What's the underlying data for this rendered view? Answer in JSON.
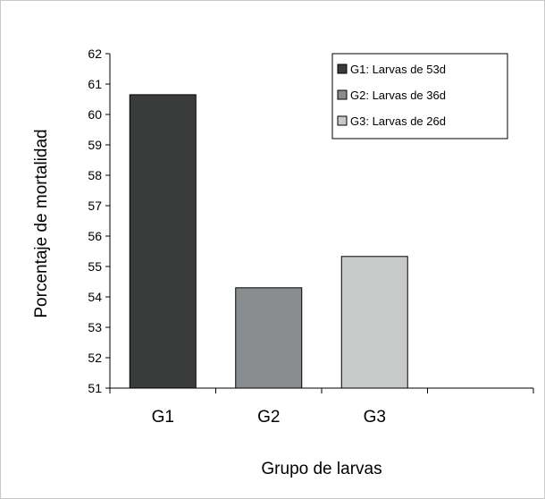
{
  "chart_data": {
    "type": "bar",
    "categories": [
      "G1",
      "G2",
      "G3",
      ""
    ],
    "series": [
      {
        "name": "G1: Larvas de 53d",
        "values": [
          60.65,
          null,
          null,
          null
        ],
        "color": "#3a3c3c"
      },
      {
        "name": "G2: Larvas de 36d",
        "values": [
          null,
          54.3,
          null,
          null
        ],
        "color": "#8a8d8f"
      },
      {
        "name": "G3: Larvas de 26d",
        "values": [
          null,
          null,
          55.33,
          null
        ],
        "color": "#c8c9c9"
      }
    ],
    "title": "",
    "xlabel": "Grupo de larvas",
    "ylabel": "Porcentaje de mortalidad",
    "ylim": [
      51,
      62
    ],
    "yticks": [
      "51",
      "52",
      "53",
      "54",
      "55",
      "56",
      "57",
      "58",
      "59",
      "60",
      "61",
      "62"
    ],
    "grid": false,
    "legend_position": "top-right"
  }
}
